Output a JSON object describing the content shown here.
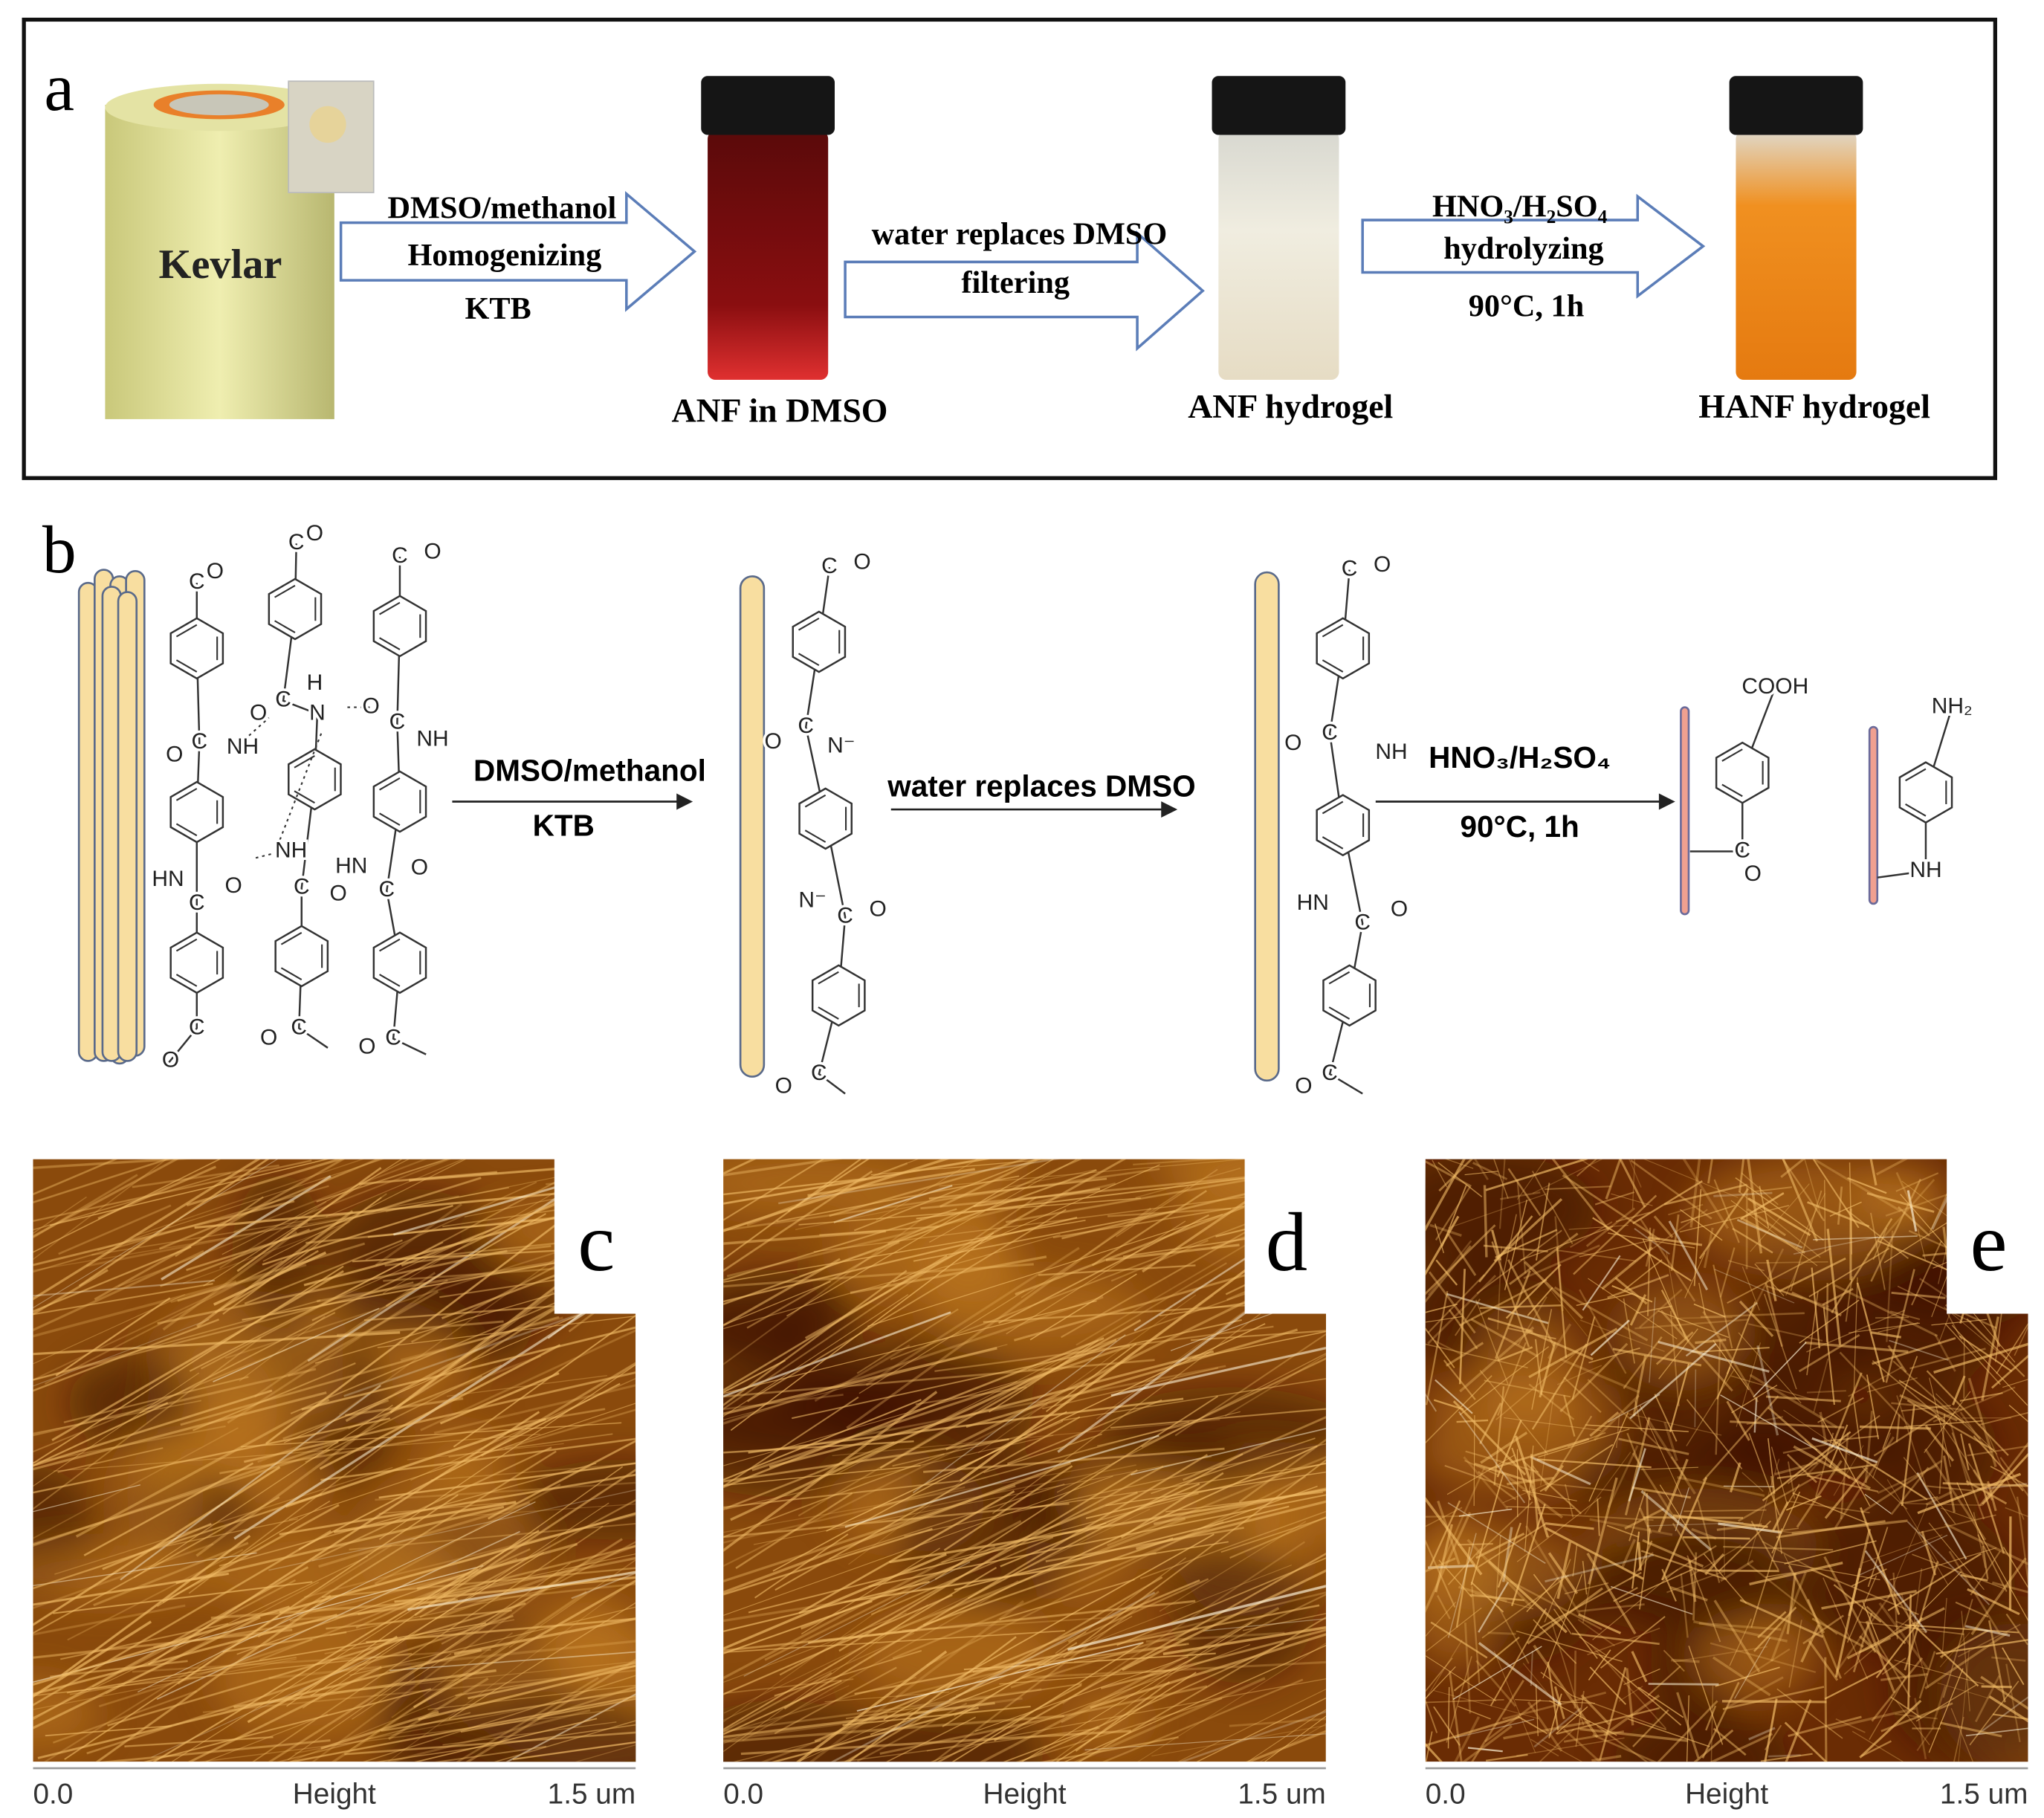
{
  "panel_a": {
    "label": "a",
    "kevlar": "Kevlar",
    "step1": [
      "DMSO/methanol",
      "Homogenizing",
      "KTB"
    ],
    "product1": "ANF in DMSO",
    "step2": [
      "water replaces DMSO",
      "filtering"
    ],
    "product2": "ANF hydrogel",
    "step3": [
      "HNO₃/H₂SO₄",
      "hydrolyzing",
      "90°C, 1h"
    ],
    "product3": "HANF hydrogel"
  },
  "panel_b": {
    "label": "b",
    "step1": [
      "DMSO/methanol",
      "KTB"
    ],
    "step2": [
      "water replaces DMSO"
    ],
    "step3": [
      "HNO₃/H₂SO₄",
      "90°C, 1h"
    ],
    "chem_labels": [
      "C",
      "O",
      "O",
      "C",
      "NH",
      "HN",
      "C",
      "O",
      "C",
      "O",
      "C",
      "O",
      "O",
      "C",
      "H",
      "N",
      "NH",
      "C",
      "O",
      "O",
      "C",
      "C",
      "O",
      "O",
      "C",
      "NH",
      "HN",
      "C",
      "O",
      "O",
      "C",
      "C",
      "O",
      "C",
      "O",
      "N⁻",
      "N⁻",
      "C",
      "O",
      "O",
      "C",
      "C",
      "O",
      "C",
      "O",
      "NH",
      "HN",
      "C",
      "O",
      "O",
      "C",
      "COOH",
      "C",
      "O",
      "NH₂",
      "NH"
    ]
  },
  "afm_panels": [
    {
      "label": "c",
      "axis_start": "0.0",
      "axis_title": "Height",
      "axis_end": "1.5 um"
    },
    {
      "label": "d",
      "axis_start": "0.0",
      "axis_title": "Height",
      "axis_end": "1.5 um"
    },
    {
      "label": "e",
      "axis_start": "0.0",
      "axis_title": "Height",
      "axis_end": "1.5 um"
    }
  ]
}
